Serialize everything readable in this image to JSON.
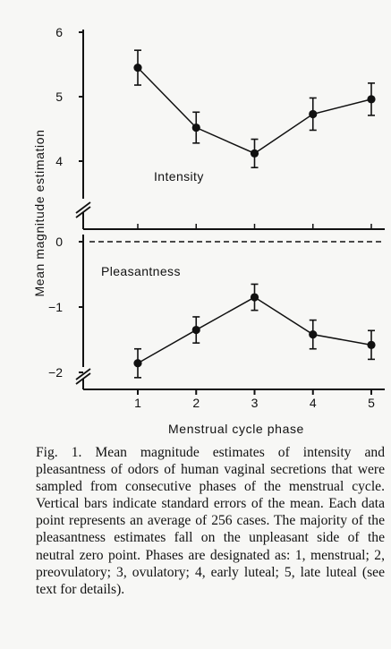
{
  "chart_data": [
    {
      "type": "line",
      "panel": "top",
      "label": "Intensity",
      "x": [
        1,
        2,
        3,
        4,
        5
      ],
      "y": [
        5.45,
        4.52,
        4.12,
        4.73,
        4.96
      ],
      "error": [
        0.27,
        0.24,
        0.22,
        0.25,
        0.25
      ],
      "ylim": [
        3.3,
        6.1
      ],
      "yticks": [
        "4",
        "5",
        "6"
      ],
      "grid": false
    },
    {
      "type": "line",
      "panel": "bottom",
      "label": "Pleasantness",
      "x": [
        1,
        2,
        3,
        4,
        5
      ],
      "y": [
        -1.86,
        -1.35,
        -0.85,
        -1.42,
        -1.58
      ],
      "error": [
        0.22,
        0.2,
        0.2,
        0.22,
        0.22
      ],
      "ylim": [
        -2.25,
        0.18
      ],
      "yticks": [
        "0",
        "−1",
        "−2"
      ],
      "reference_line": 0,
      "grid": false
    }
  ],
  "axes": {
    "ylabel": "Mean magnitude estimation",
    "xlabel": "Menstrual cycle phase",
    "xticks": [
      "1",
      "2",
      "3",
      "4",
      "5"
    ]
  },
  "caption": "Fig. 1. Mean magnitude estimates of intensity and pleasantness of odors of human vaginal secretions that were sampled from consecutive phases of the menstrual cycle. Vertical bars indicate standard errors of the mean. Each data point represents an average of 256 cases. The majority of the pleasantness estimates fall on the unpleasant side of the neutral zero point. Phases are designated as: 1, menstrual; 2, preovulatory; 3, ovulatory; 4, early luteal; 5, late luteal (see text for details)."
}
